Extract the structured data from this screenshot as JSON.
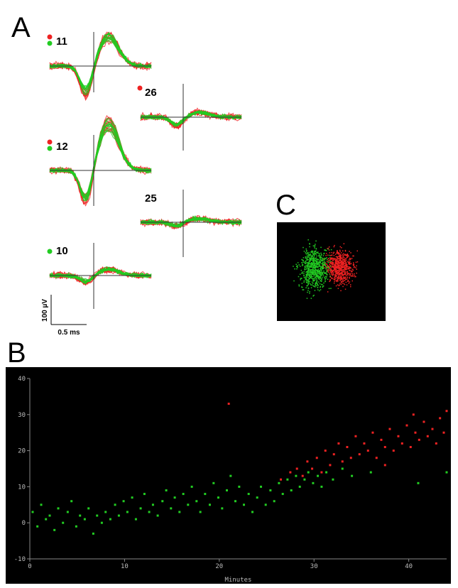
{
  "figure": {
    "A": {
      "label": "A",
      "channels": [
        "11",
        "26",
        "12",
        "25",
        "10"
      ],
      "scale_voltage": "100 µV",
      "scale_time": "0.5 ms"
    },
    "B": {
      "label": "B"
    },
    "C": {
      "label": "C"
    }
  },
  "chart_data": {
    "type": "scatter",
    "x_label": "Minutes",
    "xlim": [
      0,
      44
    ],
    "ylim": [
      -10,
      40
    ],
    "xticks": [
      0,
      10,
      20,
      30,
      40
    ],
    "yticks": [
      -10,
      0,
      10,
      20,
      30,
      40
    ],
    "series": [
      {
        "color": "#22cc22",
        "x": [
          0.3,
          0.8,
          1.2,
          1.7,
          2.1,
          2.6,
          3.0,
          3.5,
          4.0,
          4.4,
          4.9,
          5.3,
          5.8,
          6.2,
          6.7,
          7.1,
          7.6,
          8.0,
          8.5,
          9.0,
          9.4,
          9.9,
          10.3,
          10.8,
          11.2,
          11.7,
          12.1,
          12.6,
          13.0,
          13.5,
          14.0,
          14.4,
          14.9,
          15.3,
          15.8,
          16.2,
          16.7,
          17.1,
          17.6,
          18.0,
          18.5,
          19.0,
          19.4,
          19.9,
          20.3,
          20.8,
          21.2,
          21.7,
          22.1,
          22.6,
          23.1,
          23.5,
          24.0,
          24.4,
          24.9,
          25.4,
          25.8,
          26.3,
          26.7,
          27.2,
          27.6,
          28.1,
          28.5,
          29.0,
          29.4,
          29.9,
          30.4,
          30.8,
          31.3,
          32.0,
          33.0,
          34.0,
          36.0,
          41.0,
          44.0
        ],
        "values": [
          3,
          -1,
          5,
          1,
          2,
          -2,
          4,
          0,
          3,
          6,
          -1,
          2,
          1,
          4,
          -3,
          2,
          0,
          3,
          1,
          5,
          2,
          6,
          3,
          7,
          1,
          4,
          8,
          3,
          5,
          2,
          6,
          9,
          4,
          7,
          3,
          8,
          5,
          10,
          6,
          3,
          8,
          5,
          11,
          7,
          4,
          9,
          13,
          6,
          10,
          5,
          8,
          3,
          7,
          10,
          5,
          9,
          6,
          11,
          8,
          12,
          9,
          13,
          10,
          12,
          14,
          11,
          13,
          10,
          14,
          12,
          15,
          13,
          14,
          11,
          14
        ]
      },
      {
        "color": "#ee2222",
        "x": [
          26.5,
          27.5,
          28.2,
          28.8,
          29.3,
          29.8,
          30.3,
          30.8,
          31.2,
          31.7,
          32.1,
          32.6,
          33.0,
          33.5,
          33.9,
          34.4,
          34.8,
          35.3,
          35.7,
          36.2,
          36.6,
          37.1,
          37.5,
          38.0,
          38.4,
          38.9,
          39.3,
          39.8,
          40.2,
          40.7,
          41.1,
          41.6,
          42.0,
          42.5,
          42.9,
          43.3,
          43.7,
          44.0,
          21.0,
          40.5,
          37.5
        ],
        "values": [
          12,
          14,
          15,
          13,
          17,
          15,
          18,
          14,
          20,
          16,
          19,
          22,
          17,
          21,
          18,
          24,
          19,
          22,
          20,
          25,
          18,
          23,
          21,
          26,
          20,
          24,
          22,
          27,
          21,
          25,
          23,
          28,
          24,
          26,
          22,
          29,
          25,
          31,
          33,
          30,
          16
        ]
      }
    ]
  }
}
